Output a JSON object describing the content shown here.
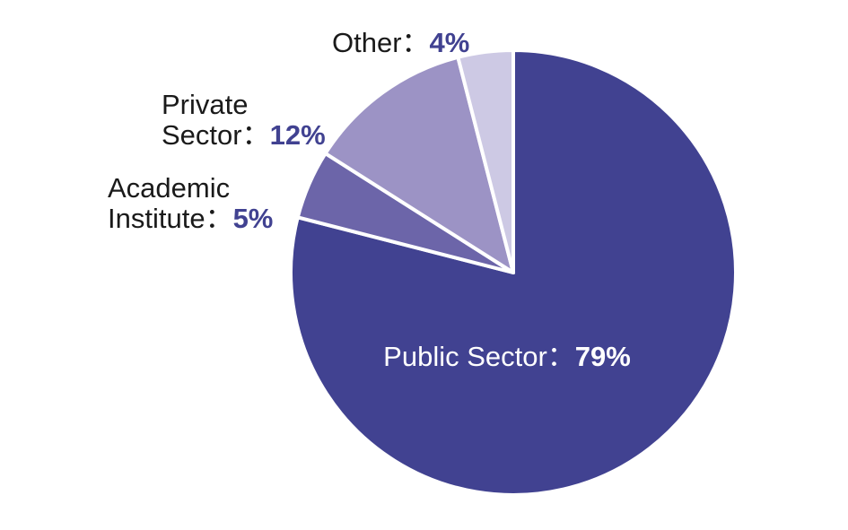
{
  "chart_data": {
    "type": "pie",
    "title": "",
    "start_angle_deg": 0,
    "direction": "clockwise",
    "slices": [
      {
        "name": "Public Sector",
        "value": 79,
        "value_label": "79%",
        "color": "#414291",
        "label_lines": [
          "Public Sector"
        ],
        "label_position": "inside"
      },
      {
        "name": "Academic Institute",
        "value": 5,
        "value_label": "5%",
        "color": "#6c65a9",
        "label_lines": [
          "Academic",
          "Institute"
        ],
        "label_position": "outside-left"
      },
      {
        "name": "Private Sector",
        "value": 12,
        "value_label": "12%",
        "color": "#9c93c5",
        "label_lines": [
          "Private",
          "Sector"
        ],
        "label_position": "outside-upper-left"
      },
      {
        "name": "Other",
        "value": 4,
        "value_label": "4%",
        "color": "#cdc9e4",
        "label_lines": [
          "Other"
        ],
        "label_position": "outside-top"
      }
    ],
    "separator": "：",
    "value_text_color": "#414291",
    "slice_border_color": "#ffffff",
    "legend": "none"
  }
}
